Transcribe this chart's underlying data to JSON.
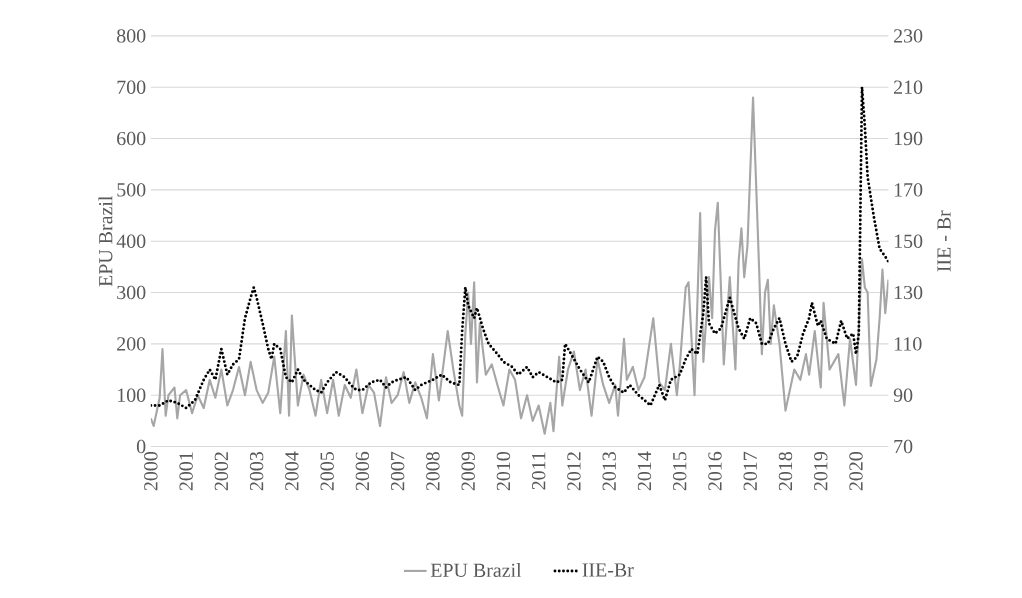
{
  "chart_data": {
    "type": "line",
    "ylabel": "EPU Brazil",
    "y2label": "IIE - Br",
    "xlim": [
      2000,
      2020.92
    ],
    "xticks": [
      2000,
      2001,
      2002,
      2003,
      2004,
      2005,
      2006,
      2007,
      2008,
      2009,
      2010,
      2011,
      2012,
      2013,
      2014,
      2015,
      2016,
      2017,
      2018,
      2019,
      2020
    ],
    "ylim": [
      0,
      800
    ],
    "yticks": [
      0,
      100,
      200,
      300,
      400,
      500,
      600,
      700,
      800
    ],
    "y2lim": [
      70,
      230
    ],
    "y2ticks": [
      70,
      90,
      110,
      130,
      150,
      170,
      190,
      210,
      230
    ],
    "grid": "y",
    "legend": "bottom",
    "series": [
      {
        "name": "EPU Brazil",
        "color": "#a6a6a6",
        "line_style": "solid",
        "x": [
          2000.0,
          2000.08,
          2000.25,
          2000.33,
          2000.42,
          2000.5,
          2000.67,
          2000.75,
          2000.83,
          2001.0,
          2001.17,
          2001.33,
          2001.5,
          2001.67,
          2001.83,
          2002.0,
          2002.17,
          2002.33,
          2002.5,
          2002.67,
          2002.83,
          2003.0,
          2003.17,
          2003.33,
          2003.5,
          2003.67,
          2003.83,
          2003.92,
          2004.0,
          2004.17,
          2004.33,
          2004.5,
          2004.67,
          2004.83,
          2005.0,
          2005.17,
          2005.33,
          2005.5,
          2005.67,
          2005.83,
          2006.0,
          2006.17,
          2006.33,
          2006.5,
          2006.67,
          2006.83,
          2007.0,
          2007.17,
          2007.33,
          2007.5,
          2007.67,
          2007.83,
          2008.0,
          2008.17,
          2008.42,
          2008.58,
          2008.75,
          2008.83,
          2008.92,
          2009.0,
          2009.08,
          2009.17,
          2009.25,
          2009.33,
          2009.5,
          2009.67,
          2009.83,
          2010.0,
          2010.17,
          2010.33,
          2010.5,
          2010.67,
          2010.83,
          2011.0,
          2011.17,
          2011.33,
          2011.42,
          2011.58,
          2011.67,
          2011.83,
          2012.0,
          2012.17,
          2012.33,
          2012.5,
          2012.67,
          2012.83,
          2013.0,
          2013.17,
          2013.25,
          2013.42,
          2013.5,
          2013.67,
          2013.83,
          2014.0,
          2014.25,
          2014.42,
          2014.58,
          2014.75,
          2014.92,
          2015.0,
          2015.17,
          2015.25,
          2015.42,
          2015.58,
          2015.67,
          2015.83,
          2015.92,
          2016.0,
          2016.08,
          2016.25,
          2016.42,
          2016.58,
          2016.67,
          2016.75,
          2016.83,
          2016.92,
          2017.08,
          2017.25,
          2017.33,
          2017.42,
          2017.5,
          2017.58,
          2017.67,
          2017.83,
          2018.0,
          2018.25,
          2018.42,
          2018.58,
          2018.67,
          2018.83,
          2019.0,
          2019.08,
          2019.25,
          2019.5,
          2019.67,
          2019.83,
          2020.0,
          2020.17,
          2020.25,
          2020.33,
          2020.42,
          2020.58,
          2020.67,
          2020.75,
          2020.83,
          2020.92
        ],
        "values": [
          55,
          40,
          95,
          190,
          60,
          100,
          115,
          55,
          100,
          110,
          65,
          100,
          75,
          130,
          95,
          150,
          80,
          110,
          155,
          100,
          165,
          110,
          85,
          105,
          175,
          65,
          225,
          60,
          255,
          80,
          140,
          110,
          60,
          130,
          65,
          130,
          60,
          120,
          95,
          150,
          65,
          120,
          105,
          40,
          135,
          85,
          100,
          145,
          85,
          125,
          95,
          55,
          180,
          90,
          225,
          150,
          80,
          60,
          220,
          300,
          200,
          320,
          125,
          240,
          140,
          160,
          120,
          80,
          150,
          130,
          55,
          100,
          50,
          80,
          25,
          85,
          30,
          175,
          80,
          150,
          185,
          110,
          150,
          60,
          170,
          120,
          85,
          120,
          60,
          210,
          130,
          155,
          110,
          135,
          250,
          125,
          110,
          200,
          100,
          155,
          310,
          320,
          100,
          455,
          165,
          330,
          250,
          420,
          475,
          160,
          330,
          150,
          360,
          425,
          330,
          390,
          680,
          350,
          180,
          300,
          325,
          200,
          275,
          200,
          70,
          150,
          130,
          180,
          140,
          225,
          115,
          280,
          150,
          180,
          80,
          210,
          120,
          365,
          310,
          300,
          118,
          170,
          250,
          345,
          260,
          325
        ]
      },
      {
        "name": "IIE-Br",
        "color": "#000000",
        "line_style": "dotted",
        "axis": "y2",
        "x": [
          2000.0,
          2000.25,
          2000.5,
          2000.75,
          2001.0,
          2001.25,
          2001.5,
          2001.67,
          2001.83,
          2002.0,
          2002.17,
          2002.33,
          2002.5,
          2002.67,
          2002.83,
          2002.92,
          2003.0,
          2003.17,
          2003.33,
          2003.42,
          2003.5,
          2003.67,
          2003.83,
          2004.0,
          2004.17,
          2004.33,
          2004.5,
          2004.67,
          2004.83,
          2005.0,
          2005.25,
          2005.5,
          2005.67,
          2005.83,
          2006.0,
          2006.25,
          2006.5,
          2006.67,
          2006.83,
          2007.0,
          2007.25,
          2007.5,
          2007.67,
          2007.83,
          2008.0,
          2008.25,
          2008.5,
          2008.75,
          2008.83,
          2008.92,
          2009.0,
          2009.17,
          2009.25,
          2009.42,
          2009.58,
          2009.83,
          2010.0,
          2010.25,
          2010.42,
          2010.67,
          2010.83,
          2011.0,
          2011.25,
          2011.5,
          2011.67,
          2011.75,
          2011.92,
          2012.17,
          2012.42,
          2012.67,
          2012.83,
          2013.0,
          2013.17,
          2013.42,
          2013.58,
          2013.83,
          2014.0,
          2014.17,
          2014.42,
          2014.58,
          2014.75,
          2015.0,
          2015.17,
          2015.33,
          2015.5,
          2015.67,
          2015.75,
          2015.83,
          2016.0,
          2016.17,
          2016.42,
          2016.67,
          2016.83,
          2017.0,
          2017.17,
          2017.33,
          2017.5,
          2017.67,
          2017.83,
          2018.0,
          2018.17,
          2018.33,
          2018.5,
          2018.67,
          2018.75,
          2018.92,
          2019.0,
          2019.17,
          2019.42,
          2019.58,
          2019.75,
          2019.92,
          2020.0,
          2020.08,
          2020.17,
          2020.25,
          2020.33,
          2020.5,
          2020.67,
          2020.83,
          2020.92
        ],
        "values": [
          86,
          86,
          88,
          87,
          85,
          88,
          96,
          100,
          96,
          108,
          98,
          102,
          104,
          120,
          128,
          132,
          128,
          118,
          108,
          104,
          110,
          108,
          97,
          95,
          100,
          96,
          94,
          92,
          91,
          95,
          99,
          97,
          94,
          92,
          92,
          95,
          96,
          93,
          95,
          96,
          97,
          92,
          94,
          95,
          96,
          98,
          95,
          94,
          115,
          132,
          125,
          120,
          124,
          116,
          110,
          106,
          103,
          101,
          98,
          101,
          97,
          99,
          97,
          95,
          96,
          110,
          106,
          100,
          95,
          105,
          103,
          97,
          93,
          91,
          94,
          90,
          88,
          86,
          94,
          88,
          96,
          98,
          104,
          108,
          106,
          122,
          136,
          118,
          114,
          116,
          128,
          116,
          112,
          120,
          118,
          110,
          110,
          116,
          120,
          110,
          103,
          105,
          114,
          120,
          126,
          117,
          119,
          112,
          110,
          119,
          112,
          114,
          106,
          114,
          210,
          195,
          175,
          160,
          147,
          144,
          142
        ]
      }
    ]
  }
}
